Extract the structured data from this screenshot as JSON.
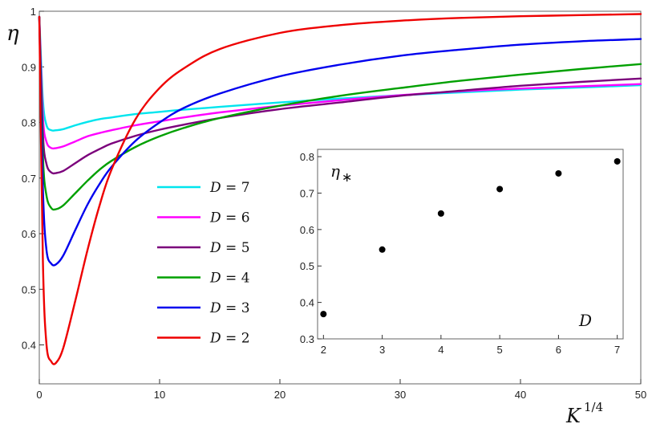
{
  "chart_data": [
    {
      "type": "line",
      "title": "",
      "xlabel": "K^{1/4}",
      "ylabel": "η",
      "xlim": [
        0,
        50
      ],
      "ylim": [
        0.33,
        1.0
      ],
      "x_ticks": [
        0,
        10,
        20,
        30,
        40,
        50
      ],
      "y_ticks": [
        0.4,
        0.5,
        0.6,
        0.7,
        0.8,
        0.9,
        1
      ],
      "grid": false,
      "legend_position": "center-left",
      "x": [
        0,
        0.3,
        0.6,
        1.0,
        1.4,
        2.0,
        3.0,
        4.0,
        5.0,
        6.0,
        8.0,
        10.0,
        12.0,
        15.0,
        20.0,
        25.0,
        30.0,
        35.0,
        40.0,
        45.0,
        50.0
      ],
      "series": [
        {
          "name": "D = 7",
          "color": "#00e5ee",
          "values": [
            0.99,
            0.84,
            0.795,
            0.786,
            0.786,
            0.788,
            0.795,
            0.801,
            0.806,
            0.809,
            0.815,
            0.819,
            0.823,
            0.828,
            0.836,
            0.843,
            0.849,
            0.854,
            0.859,
            0.863,
            0.867
          ]
        },
        {
          "name": "D = 6",
          "color": "#ff00ff",
          "values": [
            0.99,
            0.81,
            0.765,
            0.754,
            0.754,
            0.757,
            0.766,
            0.775,
            0.781,
            0.786,
            0.795,
            0.802,
            0.809,
            0.818,
            0.83,
            0.84,
            0.849,
            0.856,
            0.861,
            0.865,
            0.869
          ]
        },
        {
          "name": "D = 5",
          "color": "#7b007b",
          "values": [
            0.99,
            0.78,
            0.725,
            0.71,
            0.709,
            0.713,
            0.727,
            0.741,
            0.752,
            0.762,
            0.776,
            0.787,
            0.796,
            0.808,
            0.824,
            0.836,
            0.848,
            0.857,
            0.866,
            0.873,
            0.879
          ]
        },
        {
          "name": "D = 4",
          "color": "#00a000",
          "values": [
            0.99,
            0.74,
            0.668,
            0.646,
            0.644,
            0.651,
            0.673,
            0.695,
            0.715,
            0.731,
            0.756,
            0.775,
            0.79,
            0.808,
            0.83,
            0.848,
            0.862,
            0.875,
            0.886,
            0.896,
            0.905
          ]
        },
        {
          "name": "D = 3",
          "color": "#0000ee",
          "values": [
            0.99,
            0.68,
            0.57,
            0.546,
            0.545,
            0.561,
            0.607,
            0.652,
            0.689,
            0.72,
            0.767,
            0.8,
            0.826,
            0.852,
            0.883,
            0.904,
            0.92,
            0.931,
            0.94,
            0.946,
            0.95
          ]
        },
        {
          "name": "D = 2",
          "color": "#ee0000",
          "values": [
            0.99,
            0.55,
            0.4,
            0.37,
            0.368,
            0.395,
            0.48,
            0.57,
            0.65,
            0.715,
            0.806,
            0.862,
            0.897,
            0.932,
            0.961,
            0.975,
            0.983,
            0.988,
            0.991,
            0.993,
            0.995
          ]
        }
      ]
    },
    {
      "type": "scatter",
      "title": "",
      "xlabel": "D",
      "ylabel": "η_*",
      "xlim": [
        1.9,
        7.1
      ],
      "ylim": [
        0.3,
        0.82
      ],
      "x_ticks": [
        2,
        3,
        4,
        5,
        6,
        7
      ],
      "y_ticks": [
        0.3,
        0.4,
        0.5,
        0.6,
        0.7,
        0.8
      ],
      "grid": false,
      "x": [
        2,
        3,
        4,
        5,
        6,
        7
      ],
      "y": [
        0.368,
        0.545,
        0.644,
        0.711,
        0.754,
        0.787
      ]
    }
  ]
}
